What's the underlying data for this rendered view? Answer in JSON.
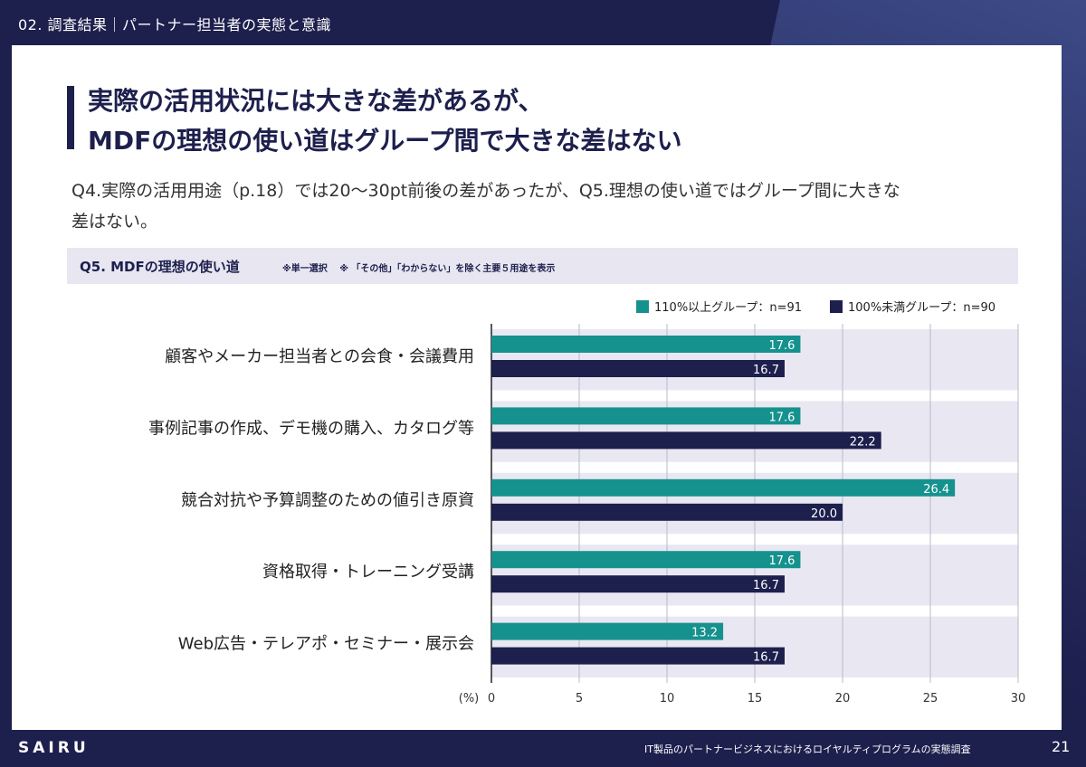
{
  "header": {
    "section_label": "02. 調査結果｜パートナー担当者の実態と意識"
  },
  "slide": {
    "title_lines": [
      "実際の活用状況には大きな差があるが、",
      "MDFの理想の使い道はグループ間で大きな差はない"
    ],
    "description_lines": [
      "Q4.実際の活用用途（p.18）では20〜30pt前後の差があったが、Q5.理想の使い道ではグループ間に大きな",
      "差はない。"
    ]
  },
  "question": {
    "title": "Q5. MDFの理想の使い道",
    "note": "※単一選択　 ※ 「その他」「わからない」を除く主要５用途を表示"
  },
  "colors": {
    "series_1": "#16928e",
    "series_2": "#1d1f4d",
    "band": "#e9e8f2"
  },
  "chart_data": {
    "type": "bar",
    "orientation": "horizontal",
    "categories": [
      "顧客やメーカー担当者との会食・会議費用",
      "事例記事の作成、デモ機の購入、カタログ等",
      "競合対抗や予算調整のための値引き原資",
      "資格取得・トレーニング受講",
      "Web広告・テレアポ・セミナー・展示会"
    ],
    "series": [
      {
        "name": "110%以上グループ：n=91",
        "values": [
          17.6,
          17.6,
          26.4,
          17.6,
          13.2
        ],
        "labels": [
          "17.6",
          "17.6",
          "26.4",
          "17.6",
          "13.2"
        ]
      },
      {
        "name": "100%未満グループ：n=90",
        "values": [
          16.7,
          22.2,
          20.0,
          16.7,
          16.7
        ],
        "labels": [
          "16.7",
          "22.2",
          "20.0",
          "16.7",
          "16.7"
        ]
      }
    ],
    "xlabel": "(%)",
    "xlim": [
      0,
      30
    ],
    "xticks": [
      "0",
      "5",
      "10",
      "15",
      "20",
      "25",
      "30"
    ],
    "legend_position": "top-right",
    "grid": true
  },
  "footer": {
    "logo": "SAIRU",
    "caption": "IT製品のパートナービジネスにおけるロイヤルティプログラムの実態調査",
    "page_number": "21"
  }
}
